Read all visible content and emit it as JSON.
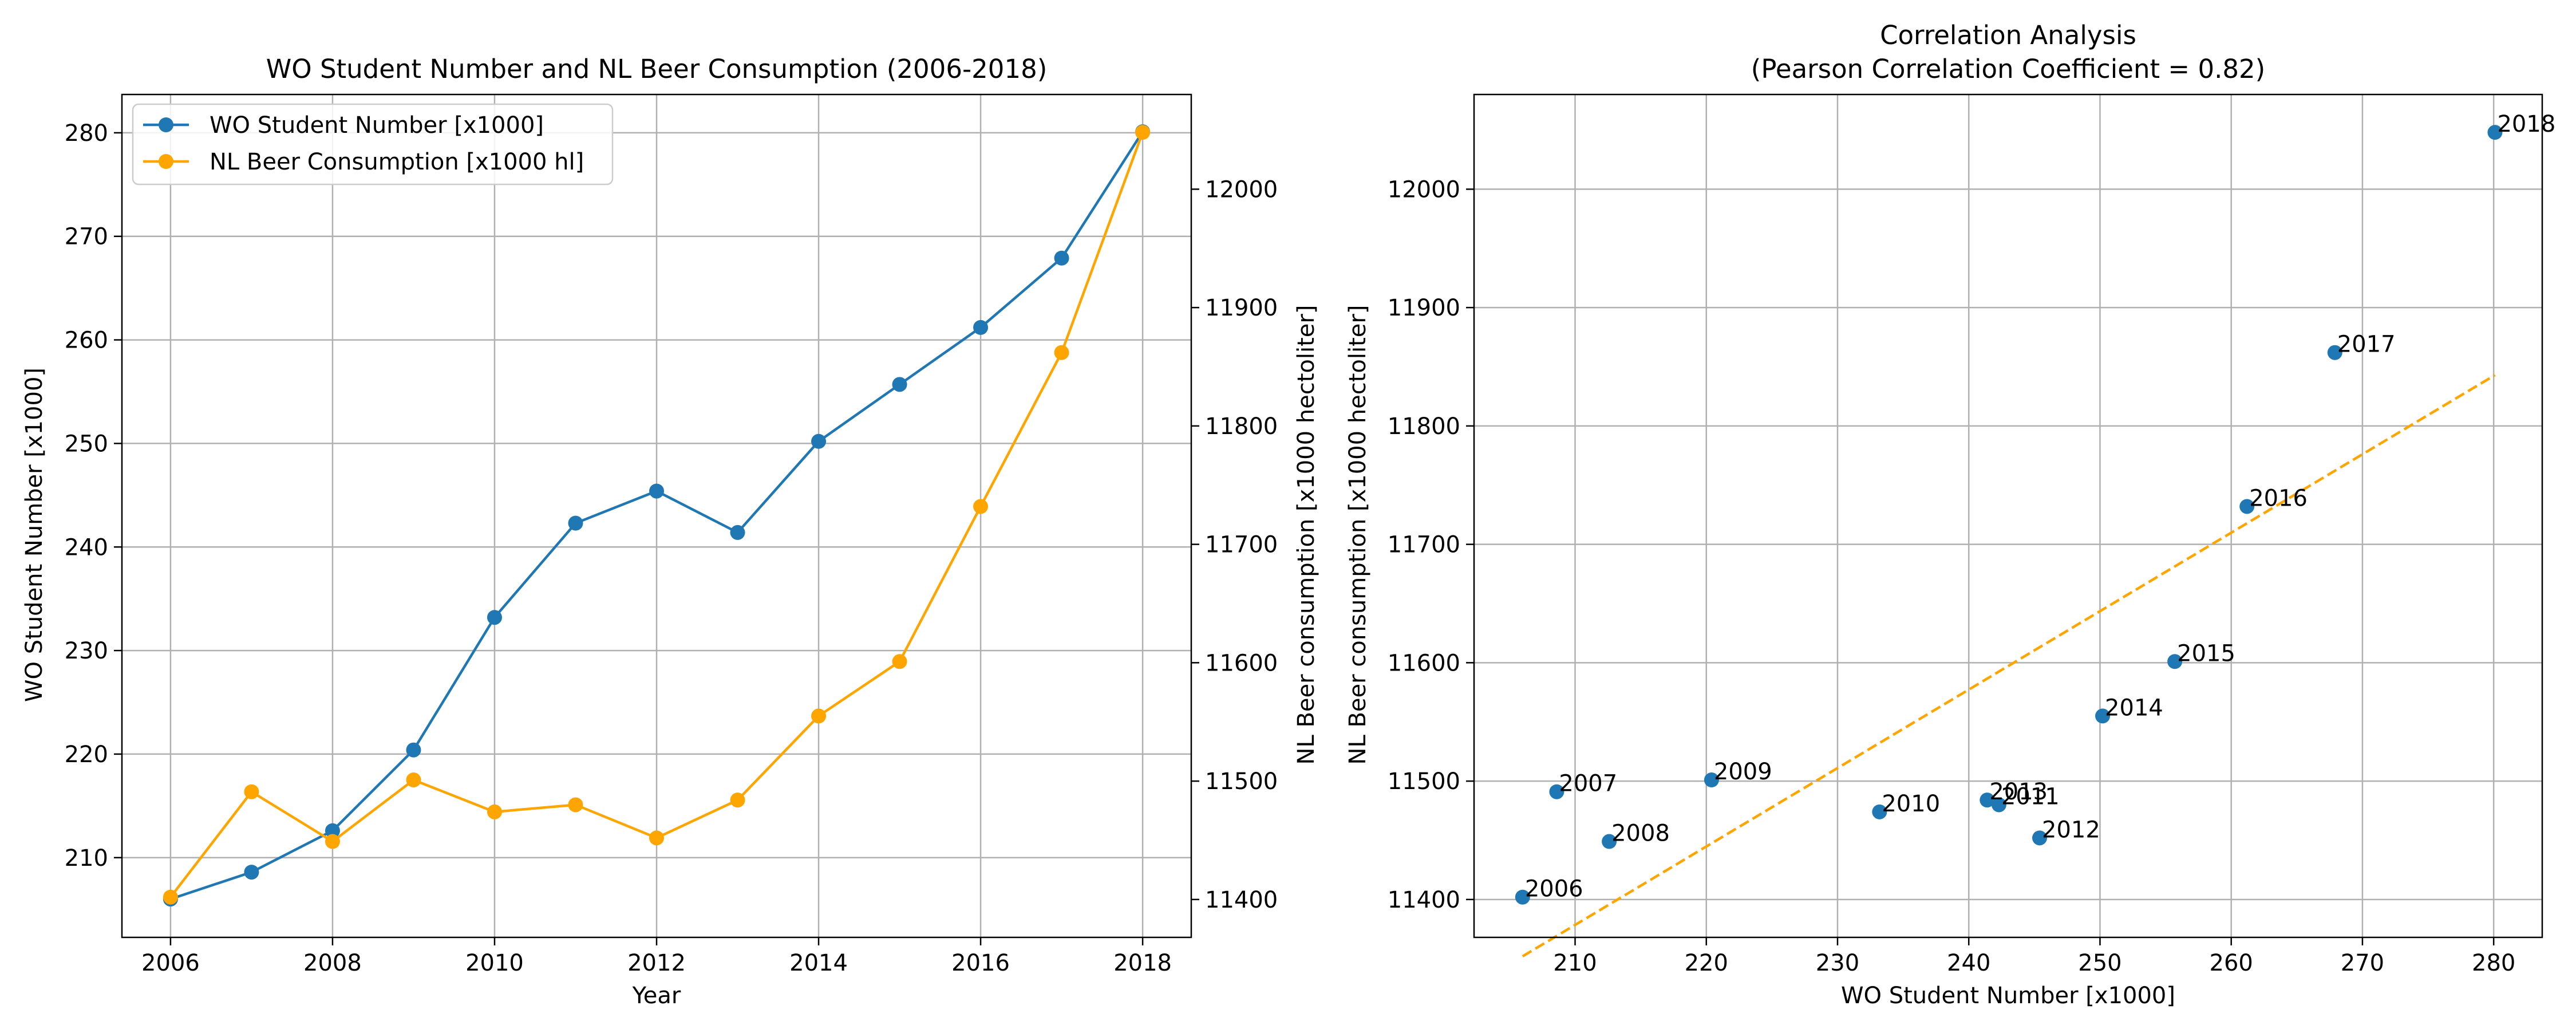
{
  "chart_data": [
    {
      "type": "line",
      "title": "WO Student Number and NL Beer Consumption (2006-2018)",
      "xlabel": "Year",
      "ylabel": "WO Student Number [x1000]",
      "ylabel_right": "NL Beer consumption [x1000 hectoliter]",
      "x": [
        2006,
        2007,
        2008,
        2009,
        2010,
        2011,
        2012,
        2013,
        2014,
        2015,
        2016,
        2017,
        2018
      ],
      "xlim": [
        2005.4,
        2018.6
      ],
      "xticks": [
        2006,
        2008,
        2010,
        2012,
        2014,
        2016,
        2018
      ],
      "ylim": [
        202.3,
        283.7
      ],
      "yticks": [
        210,
        220,
        230,
        240,
        250,
        260,
        270,
        280
      ],
      "ylim_right": [
        11368,
        12080
      ],
      "yticks_right": [
        11400,
        11500,
        11600,
        11700,
        11800,
        11900,
        12000
      ],
      "grid": true,
      "legend_position": "top-left",
      "series": [
        {
          "name": "WO Student Number [x1000]",
          "axis": "left",
          "color": "#1f77b4",
          "values": [
            206.0,
            208.6,
            212.6,
            220.4,
            233.2,
            242.3,
            245.4,
            241.4,
            250.2,
            255.7,
            261.2,
            267.9,
            280.1
          ]
        },
        {
          "name": "NL Beer Consumption [x1000 hl]",
          "axis": "right",
          "color": "#ffa500",
          "values": [
            11402,
            11491,
            11449,
            11501,
            11474,
            11480,
            11452,
            11484,
            11555,
            11601,
            11732,
            11862,
            12048
          ]
        }
      ]
    },
    {
      "type": "scatter",
      "title": "Correlation Analysis",
      "subtitle": "(Pearson Correlation Coefficient = 0.82)",
      "xlabel": "WO Student Number [x1000]",
      "ylabel": "NL Beer consumption [x1000 hectoliter]",
      "xlim": [
        202.3,
        283.7
      ],
      "xticks": [
        210,
        220,
        230,
        240,
        250,
        260,
        270,
        280
      ],
      "ylim": [
        11368,
        12080
      ],
      "yticks": [
        11400,
        11500,
        11600,
        11700,
        11800,
        11900,
        12000
      ],
      "grid": true,
      "point_color": "#1f77b4",
      "trend_color": "#ffa500",
      "points": [
        {
          "label": "2006",
          "x": 206.0,
          "y": 11402
        },
        {
          "label": "2007",
          "x": 208.6,
          "y": 11491
        },
        {
          "label": "2008",
          "x": 212.6,
          "y": 11449
        },
        {
          "label": "2009",
          "x": 220.4,
          "y": 11501
        },
        {
          "label": "2010",
          "x": 233.2,
          "y": 11474
        },
        {
          "label": "2011",
          "x": 242.3,
          "y": 11480
        },
        {
          "label": "2012",
          "x": 245.4,
          "y": 11452
        },
        {
          "label": "2013",
          "x": 241.4,
          "y": 11484
        },
        {
          "label": "2014",
          "x": 250.2,
          "y": 11555
        },
        {
          "label": "2015",
          "x": 255.7,
          "y": 11601
        },
        {
          "label": "2016",
          "x": 261.2,
          "y": 11732
        },
        {
          "label": "2017",
          "x": 267.9,
          "y": 11862
        },
        {
          "label": "2018",
          "x": 280.1,
          "y": 12048
        }
      ],
      "trendline": {
        "x": [
          206.0,
          280.1
        ],
        "y": [
          11352,
          11843
        ]
      }
    }
  ]
}
